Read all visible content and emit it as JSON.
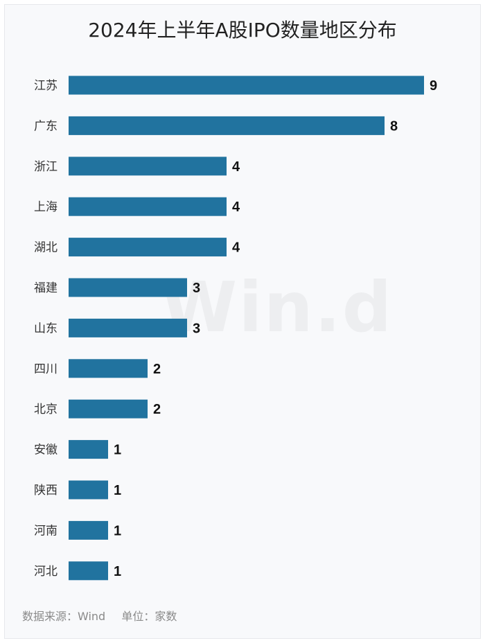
{
  "chart_data": {
    "type": "bar",
    "orientation": "horizontal",
    "title": "2024年上半年A股IPO数量地区分布",
    "categories": [
      "江苏",
      "广东",
      "浙江",
      "上海",
      "湖北",
      "福建",
      "山东",
      "四川",
      "北京",
      "安徽",
      "陕西",
      "河南",
      "河北"
    ],
    "values": [
      9,
      8,
      4,
      4,
      4,
      3,
      3,
      2,
      2,
      1,
      1,
      1,
      1
    ],
    "xlim": [
      0,
      9
    ],
    "bar_color": "#21739f",
    "grid": false,
    "legend": "none"
  },
  "watermark": "Win.d",
  "footer": {
    "source": "数据来源：Wind",
    "unit": "单位：家数"
  }
}
